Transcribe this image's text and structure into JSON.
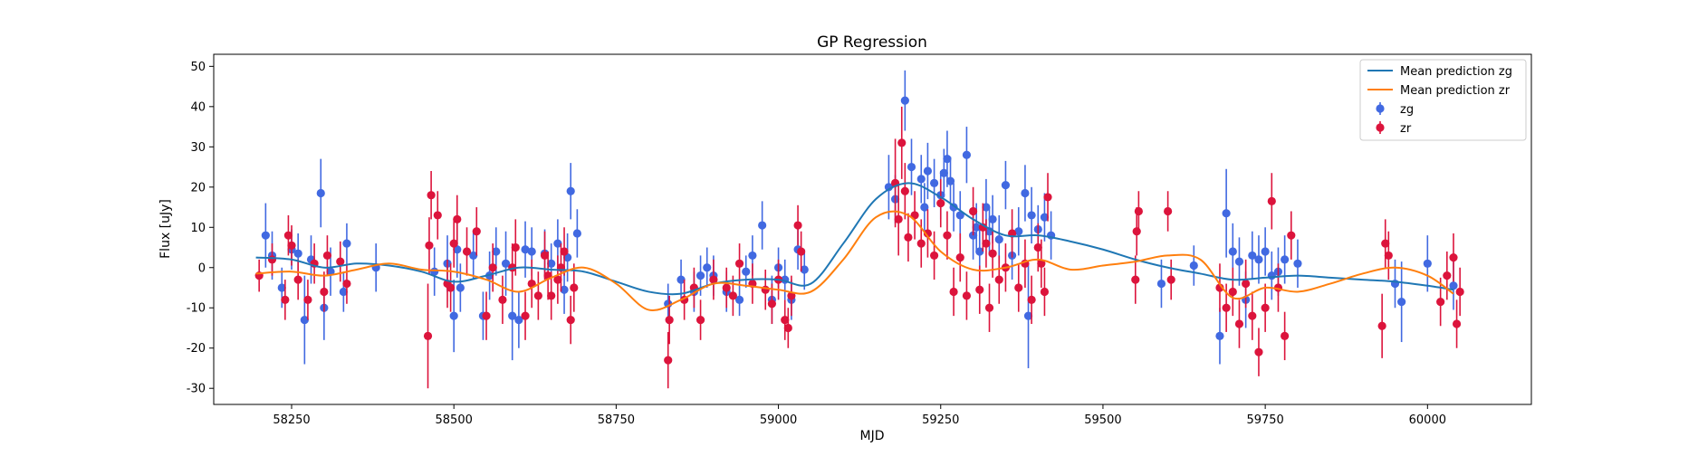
{
  "chart_data": {
    "type": "scatter",
    "title": "GP Regression",
    "xlabel": "MJD",
    "ylabel": "Flux [uJy]",
    "xlim": [
      58130,
      60160
    ],
    "ylim": [
      -34,
      53
    ],
    "xticks": [
      58250,
      58500,
      58750,
      59000,
      59250,
      59500,
      59750,
      60000
    ],
    "yticks": [
      -30,
      -20,
      -10,
      0,
      10,
      20,
      30,
      40,
      50
    ],
    "grid": false,
    "legend_position": "top-right",
    "series": [
      {
        "name": "Mean prediction zg",
        "kind": "line",
        "color": "#1f77b4",
        "x": [
          58195,
          58250,
          58300,
          58350,
          58400,
          58450,
          58500,
          58550,
          58600,
          58650,
          58700,
          58750,
          58800,
          58850,
          58900,
          58950,
          59000,
          59050,
          59100,
          59150,
          59200,
          59250,
          59300,
          59350,
          59400,
          59450,
          59500,
          59550,
          59600,
          59650,
          59700,
          59750,
          59800,
          59850,
          59900,
          59950,
          60000,
          60040
        ],
        "y": [
          2.5,
          2.0,
          0.0,
          1.0,
          0.5,
          -1.0,
          -3.5,
          -2.0,
          0.0,
          -0.5,
          -1.0,
          -3.5,
          -6.0,
          -6.5,
          -4.0,
          -3.0,
          -3.0,
          -4.0,
          6.0,
          17.0,
          21.0,
          17.5,
          12.0,
          8.0,
          8.0,
          6.5,
          4.5,
          2.0,
          0.0,
          -1.5,
          -3.0,
          -2.5,
          -2.0,
          -2.5,
          -3.0,
          -3.5,
          -4.5,
          -5.5
        ]
      },
      {
        "name": "Mean prediction zr",
        "kind": "line",
        "color": "#ff7f0e",
        "x": [
          58195,
          58250,
          58300,
          58350,
          58400,
          58450,
          58500,
          58550,
          58600,
          58650,
          58700,
          58750,
          58800,
          58850,
          58900,
          58950,
          59000,
          59050,
          59100,
          59150,
          59200,
          59250,
          59300,
          59350,
          59400,
          59450,
          59500,
          59550,
          59600,
          59650,
          59700,
          59750,
          59800,
          59850,
          59900,
          59950,
          60000,
          60040
        ],
        "y": [
          -1.5,
          -1.0,
          -2.0,
          -0.5,
          1.0,
          -0.5,
          -1.0,
          -3.0,
          -6.0,
          -2.5,
          0.0,
          -4.0,
          -10.5,
          -8.0,
          -4.0,
          -4.5,
          -5.5,
          -6.0,
          2.0,
          12.5,
          13.0,
          4.0,
          -0.5,
          0.0,
          2.0,
          -0.5,
          0.5,
          1.5,
          3.0,
          2.0,
          -7.5,
          -5.0,
          -6.0,
          -4.0,
          -1.5,
          0.0,
          -2.0,
          -6.5
        ]
      },
      {
        "name": "zg",
        "kind": "errorbar",
        "color": "#4169e1",
        "x": [
          58210,
          58220,
          58235,
          58250,
          58260,
          58270,
          58280,
          58295,
          58300,
          58310,
          58330,
          58335,
          58380,
          58470,
          58490,
          58500,
          58505,
          58510,
          58530,
          58545,
          58555,
          58565,
          58580,
          58590,
          58600,
          58610,
          58620,
          58640,
          58650,
          58660,
          58670,
          58675,
          58680,
          58690,
          58830,
          58850,
          58870,
          58880,
          58890,
          58900,
          58920,
          58940,
          58950,
          58960,
          58975,
          58990,
          59000,
          59010,
          59020,
          59030,
          59040,
          59170,
          59180,
          59195,
          59205,
          59220,
          59225,
          59230,
          59240,
          59250,
          59255,
          59260,
          59265,
          59270,
          59280,
          59290,
          59300,
          59305,
          59310,
          59320,
          59325,
          59330,
          59340,
          59350,
          59360,
          59370,
          59380,
          59385,
          59390,
          59400,
          59410,
          59420,
          59590,
          59640,
          59680,
          59690,
          59700,
          59710,
          59720,
          59730,
          59740,
          59750,
          59760,
          59770,
          59780,
          59800,
          59950,
          59960,
          60000,
          60040
        ],
        "y": [
          8.0,
          3.0,
          -5.0,
          4.5,
          3.5,
          -13.0,
          2.0,
          18.5,
          -10.0,
          -1.0,
          -6.0,
          6.0,
          0.0,
          -1.0,
          1.0,
          -12.0,
          4.5,
          -5.0,
          3.0,
          -12.0,
          -2.0,
          4.0,
          1.0,
          -12.0,
          -13.0,
          4.5,
          4.0,
          3.5,
          1.0,
          6.0,
          -5.5,
          2.5,
          19.0,
          8.5,
          -9.0,
          -3.0,
          -6.0,
          -2.0,
          0.0,
          -2.0,
          -6.0,
          -8.0,
          -1.0,
          3.0,
          10.5,
          -8.0,
          0.0,
          -3.0,
          -8.0,
          4.5,
          -0.5,
          20.0,
          17.0,
          41.5,
          25.0,
          22.0,
          15.0,
          24.0,
          21.0,
          18.0,
          23.5,
          27.0,
          21.5,
          15.0,
          13.0,
          28.0,
          8.0,
          10.0,
          4.0,
          15.0,
          9.0,
          12.0,
          7.0,
          20.5,
          3.0,
          9.0,
          18.5,
          -12.0,
          13.0,
          9.5,
          12.5,
          8.0,
          -4.0,
          0.5,
          -17.0,
          13.5,
          4.0,
          1.5,
          -8.0,
          3.0,
          2.0,
          4.0,
          -2.0,
          -1.0,
          2.0,
          1.0,
          -4.0,
          -8.5,
          1.0,
          -4.5
        ],
        "yerr": [
          8.0,
          6.0,
          5.0,
          5.0,
          5.0,
          11.0,
          6.0,
          8.5,
          8.0,
          6.0,
          5.0,
          5.0,
          6.0,
          6.0,
          7.0,
          9.0,
          7.0,
          6.0,
          6.0,
          6.0,
          6.0,
          6.0,
          8.0,
          11.0,
          7.0,
          7.0,
          6.0,
          6.0,
          5.0,
          6.0,
          6.0,
          6.0,
          7.0,
          6.0,
          5.0,
          5.0,
          5.0,
          5.0,
          5.0,
          5.0,
          5.0,
          4.0,
          4.0,
          5.0,
          6.0,
          6.0,
          5.0,
          5.0,
          5.0,
          5.0,
          5.0,
          8.0,
          6.0,
          7.5,
          7.0,
          6.0,
          6.0,
          7.0,
          6.0,
          6.0,
          6.0,
          7.0,
          6.0,
          6.0,
          6.0,
          7.0,
          6.0,
          6.0,
          6.0,
          7.0,
          6.0,
          6.0,
          6.0,
          6.0,
          6.0,
          6.0,
          7.0,
          13.0,
          7.0,
          6.0,
          6.0,
          6.0,
          6.0,
          5.0,
          7.0,
          11.0,
          7.0,
          6.0,
          7.0,
          6.0,
          6.0,
          6.0,
          6.0,
          6.0,
          6.0,
          6.0,
          6.0,
          10.0,
          7.0,
          6.0
        ]
      },
      {
        "name": "zr",
        "kind": "errorbar",
        "color": "#dc143c",
        "x": [
          58200,
          58220,
          58240,
          58245,
          58250,
          58260,
          58275,
          58285,
          58300,
          58305,
          58325,
          58335,
          58460,
          58462,
          58465,
          58475,
          58490,
          58495,
          58500,
          58505,
          58520,
          58535,
          58550,
          58560,
          58575,
          58590,
          58595,
          58610,
          58620,
          58630,
          58640,
          58645,
          58650,
          58660,
          58665,
          58670,
          58680,
          58685,
          58830,
          58832,
          58855,
          58870,
          58880,
          58900,
          58920,
          58930,
          58940,
          58960,
          58980,
          58990,
          59000,
          59010,
          59015,
          59020,
          59030,
          59035,
          59180,
          59185,
          59190,
          59195,
          59200,
          59210,
          59220,
          59230,
          59240,
          59250,
          59260,
          59270,
          59280,
          59290,
          59300,
          59310,
          59315,
          59320,
          59325,
          59330,
          59340,
          59350,
          59360,
          59370,
          59380,
          59390,
          59400,
          59405,
          59410,
          59415,
          59550,
          59552,
          59555,
          59600,
          59605,
          59680,
          59690,
          59700,
          59710,
          59720,
          59730,
          59740,
          59750,
          59760,
          59770,
          59780,
          59790,
          59930,
          59935,
          59940,
          60020,
          60030,
          60040,
          60045,
          60050
        ],
        "y": [
          -2.0,
          2.0,
          -8.0,
          8.0,
          5.5,
          -3.0,
          -8.0,
          1.0,
          -6.0,
          3.0,
          1.5,
          -4.0,
          -17.0,
          5.5,
          18.0,
          13.0,
          -4.0,
          -5.0,
          6.0,
          12.0,
          4.0,
          9.0,
          -12.0,
          0.0,
          -8.0,
          0.0,
          5.0,
          -12.0,
          -4.0,
          -7.0,
          3.0,
          -2.0,
          -7.0,
          -3.0,
          0.0,
          4.0,
          -13.0,
          -5.0,
          -23.0,
          -13.0,
          -8.0,
          -5.0,
          -13.0,
          -3.0,
          -5.0,
          -7.0,
          1.0,
          -4.0,
          -5.5,
          -9.0,
          -3.0,
          -13.0,
          -15.0,
          -7.0,
          10.5,
          4.0,
          21.0,
          12.0,
          31.0,
          19.0,
          7.5,
          13.0,
          6.0,
          8.5,
          3.0,
          16.0,
          8.0,
          -6.0,
          2.5,
          -7.0,
          14.0,
          -5.5,
          10.0,
          6.0,
          -10.0,
          3.5,
          -3.0,
          0.0,
          8.5,
          -5.0,
          1.0,
          -8.0,
          5.0,
          1.0,
          -6.0,
          17.5,
          -3.0,
          9.0,
          14.0,
          14.0,
          -3.0,
          -5.0,
          -10.0,
          -6.0,
          -14.0,
          -4.0,
          -12.0,
          -21.0,
          -10.0,
          16.5,
          -5.0,
          -17.0,
          8.0,
          -14.5,
          6.0,
          3.0,
          -8.5,
          -2.0,
          2.5,
          -14.0,
          -6.0
        ],
        "yerr": [
          4.0,
          4.0,
          5.0,
          5.0,
          5.0,
          5.0,
          5.0,
          5.0,
          5.0,
          5.0,
          5.0,
          5.0,
          13.0,
          7.0,
          6.0,
          6.0,
          6.0,
          6.0,
          6.0,
          6.0,
          6.0,
          6.0,
          6.0,
          6.0,
          6.0,
          6.0,
          7.0,
          6.0,
          6.0,
          6.0,
          6.0,
          6.0,
          6.0,
          6.0,
          6.0,
          6.0,
          6.0,
          6.0,
          7.0,
          6.0,
          5.0,
          5.0,
          5.0,
          5.0,
          5.0,
          5.0,
          5.0,
          5.0,
          5.0,
          5.0,
          5.0,
          5.0,
          5.0,
          5.0,
          5.0,
          5.0,
          11.0,
          9.0,
          9.0,
          7.0,
          6.0,
          6.0,
          6.0,
          6.0,
          6.0,
          6.0,
          6.0,
          6.0,
          6.0,
          6.0,
          6.0,
          6.0,
          6.0,
          6.0,
          6.0,
          6.0,
          6.0,
          6.0,
          6.0,
          6.0,
          6.0,
          6.0,
          6.0,
          6.0,
          6.0,
          6.0,
          6.0,
          6.0,
          5.0,
          5.0,
          5.0,
          6.0,
          6.0,
          6.0,
          6.0,
          6.0,
          6.0,
          6.0,
          6.0,
          7.0,
          6.0,
          6.0,
          6.0,
          8.0,
          6.0,
          6.0,
          6.0,
          6.0,
          6.0,
          6.0,
          6.0
        ]
      }
    ]
  }
}
